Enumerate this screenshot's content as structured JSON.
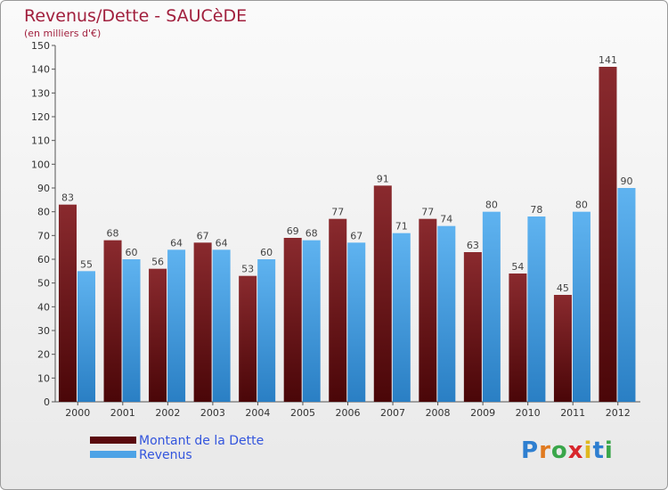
{
  "header": {
    "title": "Revenus/Dette - SAUCèDE",
    "subtitle": "(en milliers d'€)"
  },
  "colors": {
    "dette": "#7a1a1f",
    "revenus": "#4da3e6",
    "title": "#a11f3d",
    "legend_text": "#3355dd"
  },
  "chart_data": {
    "type": "bar",
    "title": "Revenus/Dette - SAUCèDE",
    "ylabel": "(en milliers d'€)",
    "xlabel": "",
    "ylim": [
      0,
      150
    ],
    "yticks": [
      0,
      10,
      20,
      30,
      40,
      50,
      60,
      70,
      80,
      90,
      100,
      110,
      120,
      130,
      140,
      150
    ],
    "categories": [
      "2000",
      "2001",
      "2002",
      "2003",
      "2004",
      "2005",
      "2006",
      "2007",
      "2008",
      "2009",
      "2010",
      "2011",
      "2012"
    ],
    "series": [
      {
        "name": "Montant de la Dette",
        "color": "#7a1a1f",
        "values": [
          83,
          68,
          56,
          67,
          53,
          69,
          77,
          91,
          77,
          63,
          54,
          45,
          141
        ]
      },
      {
        "name": "Revenus",
        "color": "#4da3e6",
        "values": [
          55,
          60,
          64,
          64,
          60,
          68,
          67,
          71,
          74,
          80,
          78,
          80,
          90
        ]
      }
    ],
    "legend_position": "bottom-left",
    "grid": false
  },
  "logo": {
    "letters": [
      "P",
      "r",
      "o",
      "x",
      "i",
      "t",
      "i"
    ],
    "colors": [
      "#2e7fd0",
      "#e07a1f",
      "#3aa64a",
      "#d8262c",
      "#e0b81f",
      "#2e7fd0",
      "#3aa64a"
    ]
  }
}
